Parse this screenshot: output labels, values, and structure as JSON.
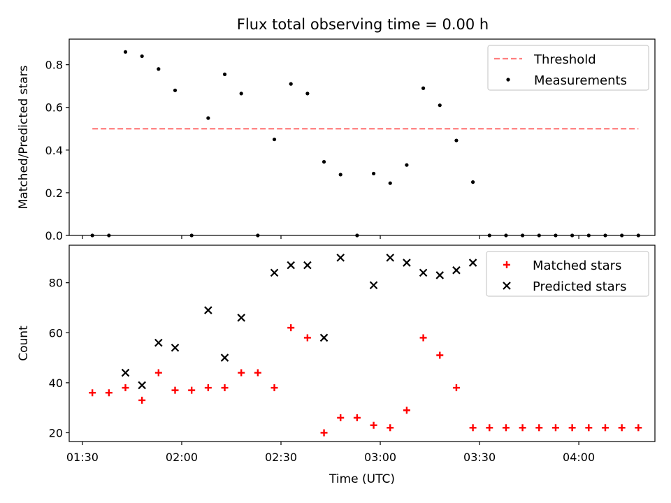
{
  "chart_data": [
    {
      "type": "scatter",
      "title": "Flux total observing time = 0.00 h",
      "xlabel": "",
      "ylabel": "Matched/Predicted stars",
      "xlim": [
        "01:26",
        "04:23"
      ],
      "ylim": [
        0,
        0.92
      ],
      "y_ticks": [
        0.0,
        0.2,
        0.4,
        0.6,
        0.8
      ],
      "x_ticks": [
        "01:30",
        "02:00",
        "02:30",
        "03:00",
        "03:30",
        "04:00"
      ],
      "x_tick_labels_shown": false,
      "grid": false,
      "legend_position": "top-right",
      "series": [
        {
          "name": "Threshold",
          "kind": "dashed-line",
          "color": "#ff7f7f",
          "x": [
            "01:33",
            "04:18"
          ],
          "values": [
            0.5,
            0.5
          ]
        },
        {
          "name": "Measurements",
          "kind": "dot",
          "color": "#000000",
          "x": [
            "01:33",
            "01:38",
            "01:43",
            "01:48",
            "01:53",
            "01:58",
            "02:03",
            "02:08",
            "02:13",
            "02:18",
            "02:23",
            "02:28",
            "02:33",
            "02:38",
            "02:43",
            "02:48",
            "02:53",
            "02:58",
            "03:03",
            "03:08",
            "03:13",
            "03:18",
            "03:23",
            "03:28",
            "03:33",
            "03:38",
            "03:43",
            "03:48",
            "03:53",
            "03:58",
            "04:03",
            "04:08",
            "04:13",
            "04:18"
          ],
          "values": [
            0,
            0,
            0.86,
            0.84,
            0.78,
            0.68,
            0,
            0.55,
            0.755,
            0.665,
            0,
            0.45,
            0.71,
            0.665,
            0.345,
            0.285,
            0,
            0.29,
            0.245,
            0.33,
            0.69,
            0.61,
            0.445,
            0.25,
            0,
            0,
            0,
            0,
            0,
            0,
            0,
            0,
            0,
            0
          ]
        }
      ]
    },
    {
      "type": "scatter",
      "title": "",
      "xlabel": "Time (UTC)",
      "ylabel": "Count",
      "xlim": [
        "01:26",
        "04:23"
      ],
      "ylim": [
        16.5,
        95
      ],
      "y_ticks": [
        20,
        40,
        60,
        80
      ],
      "x_ticks": [
        "01:30",
        "02:00",
        "02:30",
        "03:00",
        "03:30",
        "04:00"
      ],
      "grid": false,
      "legend_position": "top-right",
      "series": [
        {
          "name": "Matched stars",
          "kind": "plus",
          "color": "#ff0000",
          "x": [
            "01:33",
            "01:38",
            "01:43",
            "01:48",
            "01:53",
            "01:58",
            "02:03",
            "02:08",
            "02:13",
            "02:18",
            "02:23",
            "02:28",
            "02:33",
            "02:38",
            "02:43",
            "02:48",
            "02:53",
            "02:58",
            "03:03",
            "03:08",
            "03:13",
            "03:18",
            "03:23",
            "03:28",
            "03:33",
            "03:38",
            "03:43",
            "03:48",
            "03:53",
            "03:58",
            "04:03",
            "04:08",
            "04:13",
            "04:18"
          ],
          "values": [
            36,
            36,
            38,
            33,
            44,
            37,
            37,
            38,
            38,
            44,
            44,
            38,
            62,
            58,
            20,
            26,
            26,
            23,
            22,
            29,
            58,
            51,
            38,
            22,
            22,
            22,
            22,
            22,
            22,
            22,
            22,
            22,
            22,
            22
          ]
        },
        {
          "name": "Predicted stars",
          "kind": "x",
          "color": "#000000",
          "x": [
            "01:43",
            "01:48",
            "01:53",
            "01:58",
            "02:08",
            "02:13",
            "02:18",
            "02:28",
            "02:33",
            "02:38",
            "02:43",
            "02:48",
            "02:58",
            "03:03",
            "03:08",
            "03:13",
            "03:18",
            "03:23",
            "03:28"
          ],
          "values": [
            44,
            39,
            56,
            54,
            69,
            50,
            66,
            84,
            87,
            87,
            58,
            90,
            79,
            90,
            88,
            84,
            83,
            85,
            88
          ]
        }
      ]
    }
  ]
}
